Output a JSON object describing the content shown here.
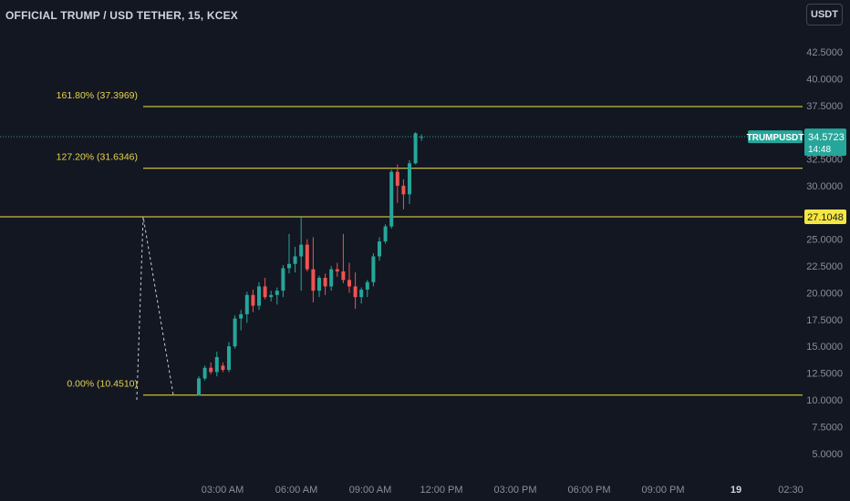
{
  "header": {
    "title": "OFFICIAL TRUMP / USD TETHER, 15, KCEX",
    "currency_button": "USDT"
  },
  "colors": {
    "background": "#131722",
    "up": "#26a69a",
    "down": "#ef5350",
    "fib_line": "#f5e642",
    "fib_text": "#e8d44d",
    "axis_text": "#8a8e99"
  },
  "price_badge": {
    "symbol": "TRUMPUSDT",
    "price": "34.5723",
    "countdown": "14:48"
  },
  "level_badge": {
    "value": "27.1048"
  },
  "fib_labels": [
    {
      "label": "161.80% (37.3969)",
      "price": 37.3969
    },
    {
      "label": "127.20% (31.6346)",
      "price": 31.6346
    },
    {
      "label": "0.00% (10.4510)",
      "price": 10.451
    }
  ],
  "chart_data": {
    "type": "candlestick",
    "ylim": [
      2.5,
      46
    ],
    "y_ticks": [
      "42.5000",
      "40.0000",
      "37.5000",
      "35.0000",
      "32.5000",
      "30.0000",
      "27.5000",
      "25.0000",
      "22.5000",
      "20.0000",
      "17.5000",
      "15.0000",
      "12.5000",
      "10.0000",
      "7.5000",
      "5.0000"
    ],
    "x_ticks": [
      "03:00 AM",
      "06:00 AM",
      "09:00 AM",
      "12:00 PM",
      "03:00 PM",
      "06:00 PM",
      "09:00 PM",
      "19",
      "02:30"
    ],
    "x_ticks_bold": [
      "19"
    ],
    "horizontal_levels": [
      37.3969,
      31.6346,
      27.1048,
      10.451
    ],
    "last_price": 34.5723,
    "candles": [
      [
        10.4,
        12.2,
        10.4,
        12.0
      ],
      [
        12.0,
        13.2,
        11.8,
        13.0
      ],
      [
        13.0,
        13.5,
        12.4,
        12.6
      ],
      [
        12.6,
        14.5,
        12.2,
        14.0
      ],
      [
        13.2,
        13.5,
        12.6,
        12.8
      ],
      [
        12.8,
        15.4,
        12.6,
        15.0
      ],
      [
        15.0,
        17.9,
        14.8,
        17.6
      ],
      [
        17.6,
        18.4,
        16.5,
        18.0
      ],
      [
        18.0,
        20.1,
        17.2,
        19.8
      ],
      [
        19.8,
        20.3,
        18.2,
        18.8
      ],
      [
        18.8,
        21.0,
        18.4,
        20.6
      ],
      [
        20.6,
        21.4,
        19.4,
        19.6
      ],
      [
        19.6,
        20.2,
        19.2,
        19.8
      ],
      [
        19.8,
        20.5,
        18.9,
        20.2
      ],
      [
        20.2,
        22.6,
        19.6,
        22.3
      ],
      [
        22.3,
        25.5,
        21.8,
        22.7
      ],
      [
        22.7,
        24.3,
        21.9,
        23.4
      ],
      [
        23.4,
        27.2,
        20.2,
        24.5
      ],
      [
        24.5,
        25.0,
        22.0,
        22.2
      ],
      [
        22.2,
        25.2,
        19.1,
        20.2
      ],
      [
        20.2,
        21.6,
        19.6,
        21.4
      ],
      [
        21.4,
        21.8,
        19.8,
        20.6
      ],
      [
        20.6,
        22.5,
        20.2,
        22.2
      ],
      [
        22.2,
        22.8,
        21.5,
        22.0
      ],
      [
        22.0,
        25.5,
        20.9,
        21.2
      ],
      [
        21.2,
        22.8,
        20.0,
        20.6
      ],
      [
        20.6,
        21.9,
        18.5,
        19.6
      ],
      [
        19.6,
        20.5,
        19.0,
        20.3
      ],
      [
        20.3,
        21.2,
        19.6,
        21.0
      ],
      [
        21.0,
        23.7,
        20.6,
        23.4
      ],
      [
        23.4,
        25.2,
        23.0,
        24.8
      ],
      [
        24.8,
        26.4,
        24.6,
        26.2
      ],
      [
        26.2,
        31.5,
        26.0,
        31.3
      ],
      [
        31.3,
        32.0,
        28.4,
        30.0
      ],
      [
        30.0,
        30.6,
        27.8,
        29.2
      ],
      [
        29.2,
        32.4,
        28.3,
        32.1
      ],
      [
        32.1,
        35.0,
        32.0,
        34.9
      ],
      [
        34.5,
        34.8,
        34.2,
        34.57
      ]
    ]
  }
}
